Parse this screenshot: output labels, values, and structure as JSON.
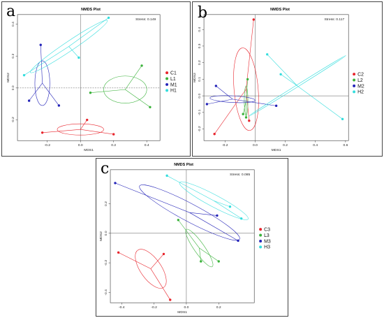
{
  "panels": [
    {
      "letter": "a",
      "chart_data": {
        "type": "scatter",
        "title": "NMDS Plot",
        "stress_label": "Stress: 0.149",
        "xlabel": "MDS1",
        "ylabel": "MDS2",
        "xlim": [
          -0.38,
          0.48
        ],
        "ylim": [
          -0.33,
          0.46
        ],
        "xticks": [
          -0.2,
          0.0,
          0.2,
          0.4
        ],
        "yticks": [
          -0.2,
          0.0,
          0.2,
          0.4
        ],
        "dashed_zero": "horizontal",
        "legend_position": "right",
        "series": [
          {
            "name": "C1",
            "color": "#e8242c",
            "points": [
              [
                -0.23,
                -0.28
              ],
              [
                0.04,
                -0.2
              ],
              [
                0.2,
                -0.29
              ]
            ],
            "ellipse": {
              "cx": 0.0,
              "cy": -0.26,
              "rx": 0.14,
              "ry": 0.035,
              "angle": 0
            }
          },
          {
            "name": "L1",
            "color": "#3ab23a",
            "points": [
              [
                0.37,
                0.14
              ],
              [
                0.42,
                -0.12
              ],
              [
                0.06,
                -0.03
              ]
            ],
            "ellipse": {
              "cx": 0.27,
              "cy": -0.01,
              "rx": 0.13,
              "ry": 0.085,
              "angle": 0
            }
          },
          {
            "name": "M1",
            "color": "#2323b8",
            "points": [
              [
                -0.24,
                0.27
              ],
              [
                -0.31,
                -0.08
              ],
              [
                -0.13,
                -0.11
              ]
            ],
            "ellipse": {
              "cx": -0.23,
              "cy": 0.03,
              "rx": 0.045,
              "ry": 0.14,
              "angle": 0
            }
          },
          {
            "name": "H1",
            "color": "#33dddd",
            "points": [
              [
                0.17,
                0.44
              ],
              [
                -0.34,
                0.08
              ],
              [
                -0.01,
                0.19
              ]
            ],
            "ellipse": {
              "cx": -0.07,
              "cy": 0.26,
              "rx": 0.28,
              "ry": 0.03,
              "angle": 34
            }
          }
        ]
      }
    },
    {
      "letter": "b",
      "chart_data": {
        "type": "scatter",
        "title": "NMDS Plot",
        "stress_label": "Stress: 0.117",
        "xlabel": "MDS1",
        "ylabel": "MDS2",
        "xlim": [
          -0.34,
          0.62
        ],
        "ylim": [
          -0.27,
          0.49
        ],
        "xticks": [
          -0.2,
          0.0,
          0.2,
          0.4,
          0.6
        ],
        "yticks": [
          -0.2,
          -0.1,
          0.0,
          0.1,
          0.2,
          0.3,
          0.4
        ],
        "dashed_zero": "none",
        "legend_position": "right",
        "series": [
          {
            "name": "C2",
            "color": "#e8242c",
            "points": [
              [
                -0.01,
                0.46
              ],
              [
                -0.27,
                -0.23
              ],
              [
                -0.04,
                -0.15
              ]
            ],
            "ellipse": {
              "cx": -0.06,
              "cy": 0.04,
              "rx": 0.08,
              "ry": 0.25,
              "angle": 5
            }
          },
          {
            "name": "L2",
            "color": "#3ab23a",
            "points": [
              [
                -0.05,
                0.1
              ],
              [
                -0.08,
                -0.11
              ],
              [
                -0.06,
                -0.13
              ]
            ],
            "ellipse": {
              "cx": -0.06,
              "cy": -0.03,
              "rx": 0.012,
              "ry": 0.09,
              "angle": 0
            }
          },
          {
            "name": "M2",
            "color": "#2323b8",
            "points": [
              [
                -0.26,
                0.06
              ],
              [
                -0.32,
                -0.05
              ],
              [
                0.14,
                -0.06
              ]
            ],
            "ellipse": {
              "cx": -0.15,
              "cy": -0.02,
              "rx": 0.15,
              "ry": 0.02,
              "angle": -3
            }
          },
          {
            "name": "H2",
            "color": "#33dddd",
            "points": [
              [
                0.08,
                0.25
              ],
              [
                0.17,
                0.13
              ],
              [
                0.58,
                -0.14
              ]
            ],
            "ellipse": {
              "cx": 0.28,
              "cy": 0.06,
              "rx": 0.38,
              "ry": 0.006,
              "angle": 32
            }
          }
        ]
      }
    },
    {
      "letter": "c",
      "chart_data": {
        "type": "scatter",
        "title": "NMDS Plot",
        "stress_label": "Stress: 0.085",
        "xlabel": "MDS1",
        "ylabel": "MDS2",
        "xlim": [
          -0.47,
          0.42
        ],
        "ylim": [
          -0.47,
          0.43
        ],
        "xticks": [
          -0.4,
          -0.2,
          0.0,
          0.2
        ],
        "yticks": [
          -0.4,
          -0.2,
          0.0,
          0.2
        ],
        "dashed_zero": "none",
        "legend_position": "right",
        "series": [
          {
            "name": "C3",
            "color": "#e8242c",
            "points": [
              [
                -0.42,
                -0.13
              ],
              [
                -0.14,
                -0.14
              ],
              [
                -0.1,
                -0.45
              ]
            ],
            "ellipse": {
              "cx": -0.22,
              "cy": -0.24,
              "rx": 0.14,
              "ry": 0.07,
              "angle": -55
            }
          },
          {
            "name": "L3",
            "color": "#3ab23a",
            "points": [
              [
                -0.05,
                0.09
              ],
              [
                0.09,
                -0.19
              ],
              [
                0.2,
                -0.19
              ]
            ],
            "ellipse": {
              "cx": 0.08,
              "cy": -0.1,
              "rx": 0.14,
              "ry": 0.035,
              "angle": -55
            }
          },
          {
            "name": "M3",
            "color": "#2323b8",
            "points": [
              [
                -0.44,
                0.34
              ],
              [
                0.19,
                0.12
              ],
              [
                0.32,
                -0.05
              ]
            ],
            "ellipse": {
              "cx": 0.02,
              "cy": 0.14,
              "rx": 0.35,
              "ry": 0.06,
              "angle": -28
            }
          },
          {
            "name": "H3",
            "color": "#33dddd",
            "points": [
              [
                -0.12,
                0.39
              ],
              [
                0.27,
                0.18
              ],
              [
                0.34,
                0.1
              ]
            ],
            "ellipse": {
              "cx": 0.17,
              "cy": 0.22,
              "rx": 0.24,
              "ry": 0.04,
              "angle": -28
            }
          }
        ]
      }
    }
  ]
}
